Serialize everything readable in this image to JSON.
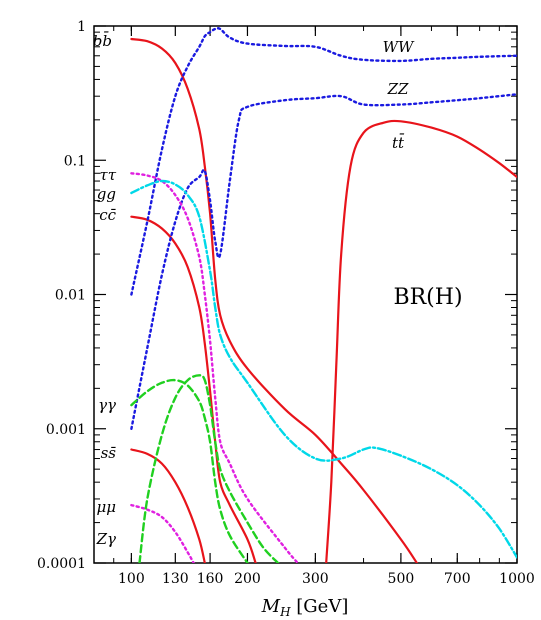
{
  "chart_data": {
    "type": "line",
    "title": "",
    "xlabel": "M_H [GeV]",
    "ylabel": "",
    "x_scale": "log",
    "y_scale": "log",
    "xlim": [
      80,
      1000
    ],
    "ylim": [
      0.0001,
      1
    ],
    "x_ticks": [
      {
        "value": 100,
        "label": "100"
      },
      {
        "value": 130,
        "label": "130"
      },
      {
        "value": 160,
        "label": "160"
      },
      {
        "value": 200,
        "label": "200"
      },
      {
        "value": 300,
        "label": "300"
      },
      {
        "value": 500,
        "label": "500"
      },
      {
        "value": 700,
        "label": "700"
      },
      {
        "value": 1000,
        "label": "1000"
      }
    ],
    "y_ticks": [
      {
        "value": 1,
        "label": "1"
      },
      {
        "value": 0.1,
        "label": "0.1"
      },
      {
        "value": 0.01,
        "label": "0.01"
      },
      {
        "value": 0.001,
        "label": "0.001"
      },
      {
        "value": 0.0001,
        "label": "0.0001"
      }
    ],
    "annotation": "BR(H)",
    "colors": {
      "red": "#e8141b",
      "blue": "#1a1ae0",
      "magenta": "#e020e0",
      "cyan": "#00d8e8",
      "green": "#20d020"
    },
    "series": [
      {
        "name": "bb̄",
        "color": "#e8141b",
        "dash": "solid",
        "points": [
          [
            100,
            0.8
          ],
          [
            110,
            0.77
          ],
          [
            120,
            0.68
          ],
          [
            130,
            0.53
          ],
          [
            140,
            0.34
          ],
          [
            150,
            0.17
          ],
          [
            155,
            0.09
          ],
          [
            160,
            0.04
          ],
          [
            165,
            0.013
          ],
          [
            170,
            0.007
          ],
          [
            180,
            0.0045
          ],
          [
            200,
            0.0028
          ],
          [
            250,
            0.0014
          ],
          [
            300,
            0.0009
          ],
          [
            350,
            0.00055
          ],
          [
            400,
            0.00035
          ],
          [
            500,
            0.00015
          ],
          [
            550,
            0.0001
          ]
        ]
      },
      {
        "name": "cc̄",
        "color": "#e8141b",
        "dash": "solid",
        "points": [
          [
            100,
            0.038
          ],
          [
            110,
            0.036
          ],
          [
            120,
            0.031
          ],
          [
            130,
            0.024
          ],
          [
            140,
            0.016
          ],
          [
            150,
            0.008
          ],
          [
            155,
            0.0043
          ],
          [
            160,
            0.0019
          ],
          [
            165,
            0.0008
          ],
          [
            170,
            0.0004
          ],
          [
            180,
            0.00027
          ],
          [
            200,
            0.00015
          ],
          [
            210,
            0.0001
          ]
        ]
      },
      {
        "name": "ss̄",
        "color": "#e8141b",
        "dash": "solid",
        "points": [
          [
            100,
            0.0007
          ],
          [
            110,
            0.00065
          ],
          [
            120,
            0.00055
          ],
          [
            130,
            0.0004
          ],
          [
            140,
            0.00026
          ],
          [
            150,
            0.00015
          ],
          [
            155,
            0.0001
          ]
        ]
      },
      {
        "name": "tt̄",
        "color": "#e8141b",
        "dash": "solid",
        "points": [
          [
            320,
            0.0001
          ],
          [
            330,
            0.0004
          ],
          [
            340,
            0.003
          ],
          [
            350,
            0.02
          ],
          [
            370,
            0.09
          ],
          [
            400,
            0.16
          ],
          [
            450,
            0.19
          ],
          [
            500,
            0.195
          ],
          [
            600,
            0.175
          ],
          [
            700,
            0.15
          ],
          [
            800,
            0.12
          ],
          [
            900,
            0.095
          ],
          [
            1000,
            0.075
          ]
        ]
      },
      {
        "name": "WW",
        "color": "#1a1ae0",
        "dash": "dotted",
        "points": [
          [
            100,
            0.01
          ],
          [
            110,
            0.035
          ],
          [
            120,
            0.12
          ],
          [
            130,
            0.3
          ],
          [
            140,
            0.5
          ],
          [
            150,
            0.7
          ],
          [
            155,
            0.84
          ],
          [
            160,
            0.9
          ],
          [
            165,
            0.95
          ],
          [
            170,
            0.95
          ],
          [
            180,
            0.82
          ],
          [
            200,
            0.74
          ],
          [
            250,
            0.71
          ],
          [
            300,
            0.7
          ],
          [
            350,
            0.6
          ],
          [
            400,
            0.56
          ],
          [
            500,
            0.55
          ],
          [
            600,
            0.57
          ],
          [
            700,
            0.58
          ],
          [
            800,
            0.59
          ],
          [
            1000,
            0.6
          ]
        ]
      },
      {
        "name": "ZZ",
        "color": "#1a1ae0",
        "dash": "dotted",
        "points": [
          [
            100,
            0.001
          ],
          [
            110,
            0.004
          ],
          [
            120,
            0.014
          ],
          [
            130,
            0.035
          ],
          [
            140,
            0.062
          ],
          [
            150,
            0.075
          ],
          [
            155,
            0.083
          ],
          [
            160,
            0.05
          ],
          [
            165,
            0.025
          ],
          [
            170,
            0.02
          ],
          [
            180,
            0.07
          ],
          [
            190,
            0.2
          ],
          [
            200,
            0.25
          ],
          [
            250,
            0.28
          ],
          [
            300,
            0.29
          ],
          [
            350,
            0.3
          ],
          [
            400,
            0.26
          ],
          [
            500,
            0.26
          ],
          [
            600,
            0.27
          ],
          [
            700,
            0.28
          ],
          [
            800,
            0.29
          ],
          [
            1000,
            0.31
          ]
        ]
      },
      {
        "name": "ττ",
        "color": "#e020e0",
        "dash": "dotted",
        "points": [
          [
            100,
            0.08
          ],
          [
            110,
            0.077
          ],
          [
            120,
            0.07
          ],
          [
            130,
            0.055
          ],
          [
            140,
            0.037
          ],
          [
            150,
            0.019
          ],
          [
            155,
            0.01
          ],
          [
            160,
            0.0045
          ],
          [
            165,
            0.0017
          ],
          [
            170,
            0.0008
          ],
          [
            180,
            0.00055
          ],
          [
            200,
            0.0003
          ],
          [
            250,
            0.00013
          ],
          [
            270,
            0.0001
          ]
        ]
      },
      {
        "name": "μμ",
        "color": "#e020e0",
        "dash": "dotted",
        "points": [
          [
            100,
            0.00027
          ],
          [
            110,
            0.00025
          ],
          [
            120,
            0.00022
          ],
          [
            130,
            0.00017
          ],
          [
            140,
            0.00012
          ],
          [
            145,
            0.0001
          ]
        ]
      },
      {
        "name": "gg",
        "color": "#00d8e8",
        "dash": "dashdot",
        "points": [
          [
            100,
            0.057
          ],
          [
            110,
            0.065
          ],
          [
            120,
            0.07
          ],
          [
            130,
            0.066
          ],
          [
            140,
            0.055
          ],
          [
            150,
            0.038
          ],
          [
            160,
            0.015
          ],
          [
            165,
            0.008
          ],
          [
            170,
            0.005
          ],
          [
            180,
            0.0034
          ],
          [
            200,
            0.0022
          ],
          [
            250,
            0.0009
          ],
          [
            300,
            0.0006
          ],
          [
            350,
            0.0006
          ],
          [
            400,
            0.0007
          ],
          [
            430,
            0.00072
          ],
          [
            500,
            0.00063
          ],
          [
            600,
            0.0005
          ],
          [
            700,
            0.00038
          ],
          [
            800,
            0.00027
          ],
          [
            900,
            0.00018
          ],
          [
            1000,
            0.00011
          ]
        ]
      },
      {
        "name": "γγ",
        "color": "#20d020",
        "dash": "dashed",
        "points": [
          [
            100,
            0.0015
          ],
          [
            110,
            0.0019
          ],
          [
            120,
            0.0022
          ],
          [
            130,
            0.0023
          ],
          [
            140,
            0.0021
          ],
          [
            150,
            0.0016
          ],
          [
            155,
            0.0012
          ],
          [
            160,
            0.0008
          ],
          [
            165,
            0.0004
          ],
          [
            170,
            0.00025
          ],
          [
            180,
            0.00016
          ],
          [
            200,
            0.0001
          ]
        ]
      },
      {
        "name": "Zγ",
        "color": "#20d020",
        "dash": "dashed",
        "points": [
          [
            105,
            0.0001
          ],
          [
            110,
            0.0003
          ],
          [
            120,
            0.0009
          ],
          [
            130,
            0.0017
          ],
          [
            140,
            0.0023
          ],
          [
            150,
            0.0025
          ],
          [
            155,
            0.0023
          ],
          [
            160,
            0.0015
          ],
          [
            165,
            0.0008
          ],
          [
            170,
            0.0005
          ],
          [
            180,
            0.00034
          ],
          [
            200,
            0.0002
          ],
          [
            220,
            0.00013
          ],
          [
            240,
            0.0001
          ]
        ]
      }
    ]
  }
}
